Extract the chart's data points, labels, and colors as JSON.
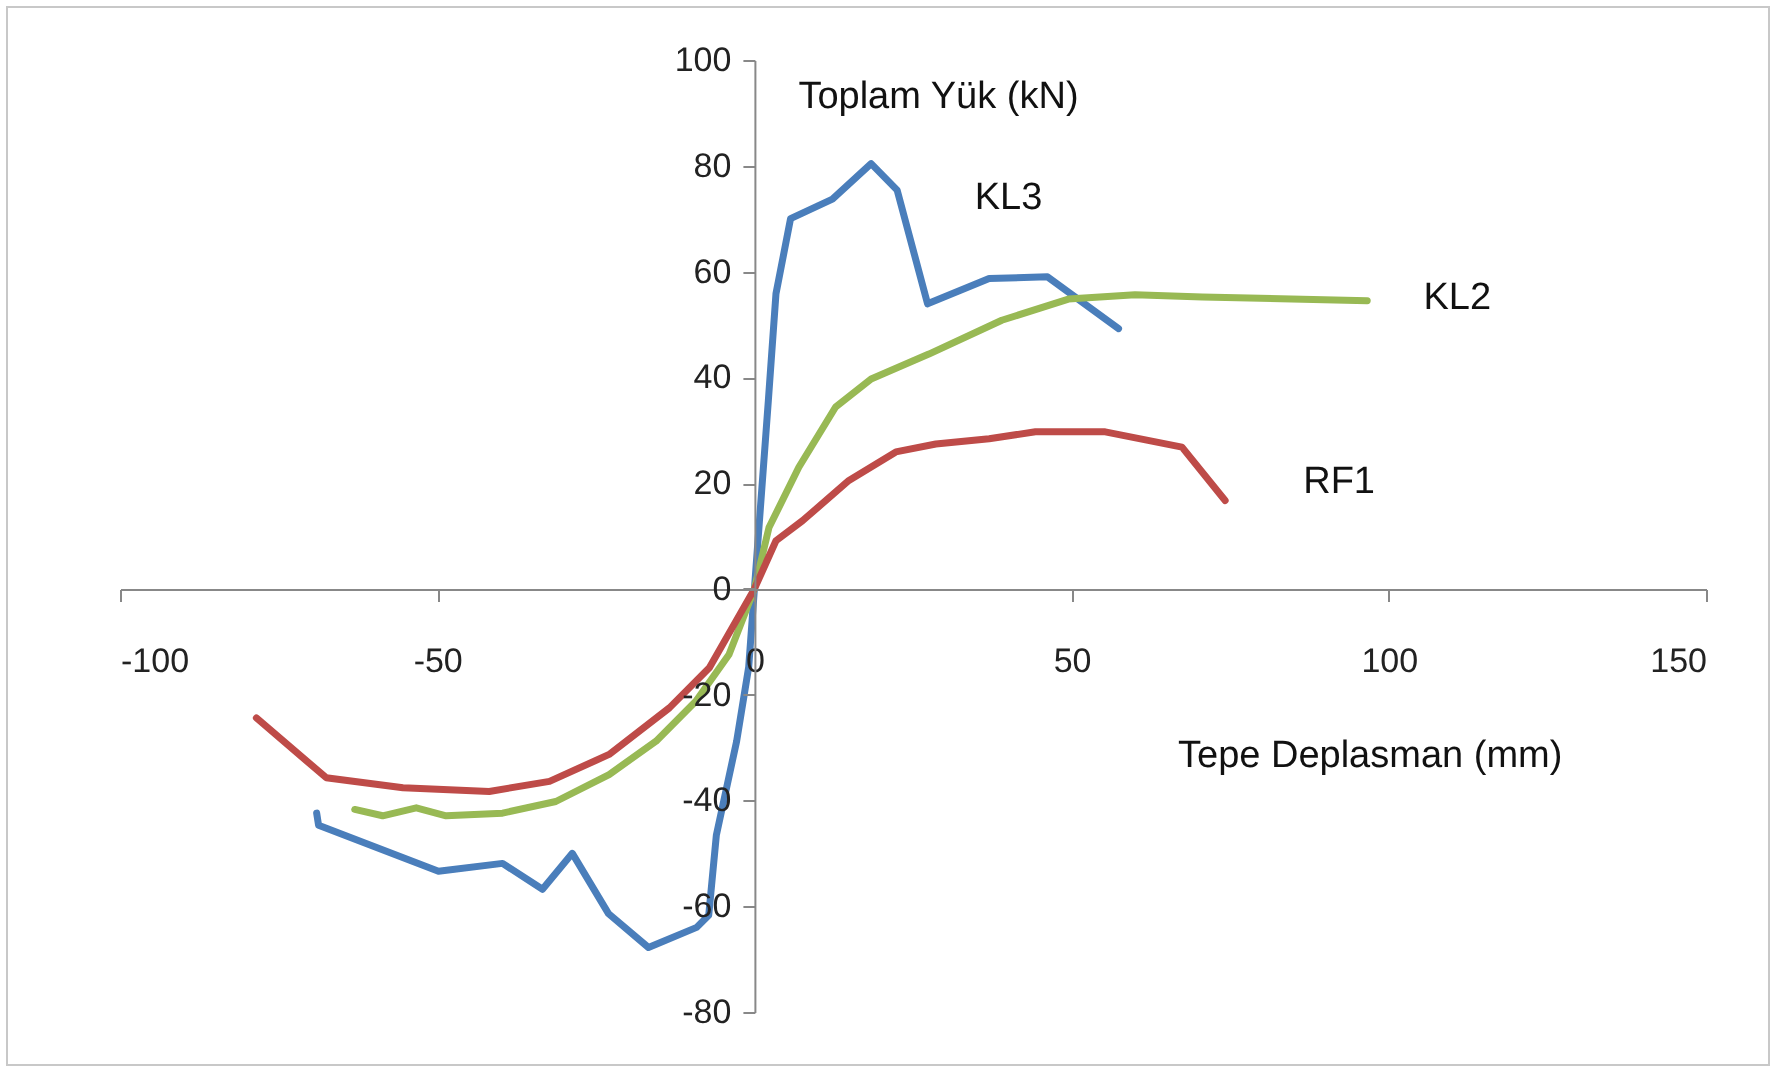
{
  "chart_data": {
    "type": "line",
    "xlabel": "Tepe Deplasman (mm)",
    "ylabel": "Toplam Yük (kN)",
    "xlim": [
      -100,
      150
    ],
    "xticks": [
      -100,
      -50,
      0,
      50,
      100,
      150
    ],
    "ylim": [
      -80,
      100
    ],
    "yticks": [
      -80,
      -60,
      -40,
      -20,
      0,
      20,
      40,
      60,
      80,
      100
    ],
    "grid": false,
    "legend": false,
    "marker": "none",
    "line_style": "solid",
    "series": [
      {
        "name": "KL3",
        "color": "#4a7ebb",
        "x": [
          -69,
          -68.7,
          -49.8,
          -39.7,
          -33.4,
          -28.7,
          -23,
          -16.7,
          -9.1,
          -7.2,
          -6,
          -2.8,
          -0.9,
          0,
          2.2,
          3.4,
          5.7,
          12.3,
          18.4,
          22.5,
          27.3,
          37,
          46.2,
          57.4
        ],
        "values": [
          -42.4,
          -44.7,
          -53.4,
          -51.9,
          -56.8,
          -50,
          -61.4,
          -67.8,
          -64,
          -61.7,
          -46.6,
          -28.8,
          -14.8,
          0,
          35.6,
          55.8,
          70,
          73.7,
          80.4,
          75.4,
          53.9,
          58.7,
          59,
          49.2
        ]
      },
      {
        "name": "KL2",
        "color": "#98b954",
        "x": [
          -63,
          -58.6,
          -53.3,
          -48.6,
          -39.7,
          -31.3,
          -22.9,
          -15.5,
          -9.2,
          -4,
          0,
          2.3,
          7,
          12.8,
          18.4,
          27.5,
          39,
          49.5,
          60,
          70.6,
          96.6
        ],
        "values": [
          -41.7,
          -42.9,
          -41.4,
          -42.9,
          -42.4,
          -40.2,
          -35.1,
          -28.8,
          -21.2,
          -12.4,
          0,
          11.6,
          23,
          34.4,
          39.7,
          44.4,
          50.8,
          54.8,
          55.6,
          55.2,
          54.5
        ]
      },
      {
        "name": "RF1",
        "color": "#be4b48",
        "x": [
          -78.5,
          -67.5,
          -55.4,
          -41.8,
          -32.3,
          -22.9,
          -13.4,
          -7.1,
          0,
          3.4,
          7.6,
          14.9,
          22.3,
          28.6,
          37,
          44.3,
          55.3,
          67.4,
          74.2
        ],
        "values": [
          -24.4,
          -35.7,
          -37.6,
          -38.3,
          -36.4,
          -31.3,
          -22.5,
          -14.9,
          0,
          9.1,
          12.9,
          20.5,
          25.9,
          27.4,
          28.4,
          29.7,
          29.7,
          26.8,
          16.7
        ]
      }
    ]
  }
}
